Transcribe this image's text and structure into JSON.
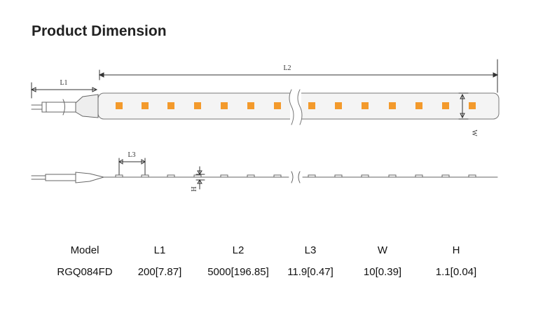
{
  "header": {
    "title": "Product Dimension"
  },
  "diagram": {
    "labels": {
      "l1": "L1",
      "l2": "L2",
      "l3": "L3",
      "w": "W",
      "h": "H"
    }
  },
  "table": {
    "columns": [
      "Model",
      "L1",
      "L2",
      "L3",
      "W",
      "H"
    ],
    "rows": [
      [
        "RGQ084FD",
        "200[7.87]",
        "5000[196.85]",
        "11.9[0.47]",
        "10[0.39]",
        "1.1[0.04]"
      ]
    ]
  }
}
